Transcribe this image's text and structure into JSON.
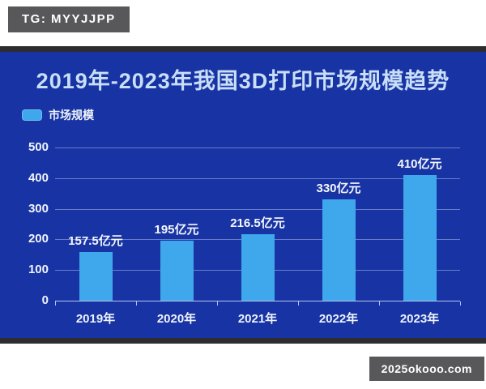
{
  "watermarks": {
    "top": "TG: MYYJJPP",
    "bottom": "2025okooo.com"
  },
  "chart_data": {
    "type": "bar",
    "title": "2019年-2023年我国3D打印市场规模趋势",
    "legend_label": "市场规模",
    "legend_position": "top-left",
    "categories": [
      "2019年",
      "2020年",
      "2021年",
      "2022年",
      "2023年"
    ],
    "series": [
      {
        "name": "市场规模",
        "values": [
          157.5,
          195,
          216.5,
          330,
          410
        ]
      }
    ],
    "value_labels": [
      "157.5亿元",
      "195亿元",
      "216.5亿元",
      "330亿元",
      "410亿元"
    ],
    "unit": "亿元",
    "xlabel": "",
    "ylabel": "",
    "ylim": [
      0,
      500
    ],
    "yticks": [
      0,
      100,
      200,
      300,
      400,
      500
    ],
    "grid": true,
    "colors": {
      "bar": "#3fa7ec",
      "panel_background": "#1834a4",
      "panel_border": "#2d2d2f",
      "title_text": "#c9def7",
      "axis_text": "#f0f4fc",
      "badge_background": "#58585a"
    }
  }
}
